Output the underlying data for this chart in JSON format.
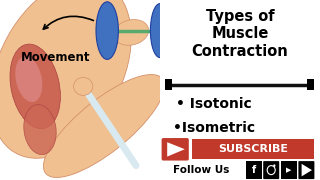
{
  "bg_left": "#f5f0eb",
  "bg_right": "#ffffff",
  "title_lines": [
    "Types of",
    "Muscle",
    "Contraction"
  ],
  "title_fontsize": 10.5,
  "bullet1": "• Isotonic",
  "bullet2": "•Isometric",
  "bullet_fontsize": 10,
  "separator_color": "#111111",
  "subscribe_text": "SUBSCRIBE",
  "subscribe_bg": "#c0392b",
  "subscribe_text_color": "#ffffff",
  "yt_icon_color": "#c0392b",
  "follow_text": "Follow Us",
  "follow_fontsize": 7.5,
  "movement_text": "Movement",
  "movement_fontsize": 8.5,
  "skin_color": "#f0c090",
  "skin_edge": "#d4906a",
  "muscle_color": "#cc6655",
  "muscle_hi": "#e09090",
  "bone_color": "#d8eaf0",
  "blue_dumbbell": "#4070c0",
  "dumbbell_handle": "#5aaa70"
}
